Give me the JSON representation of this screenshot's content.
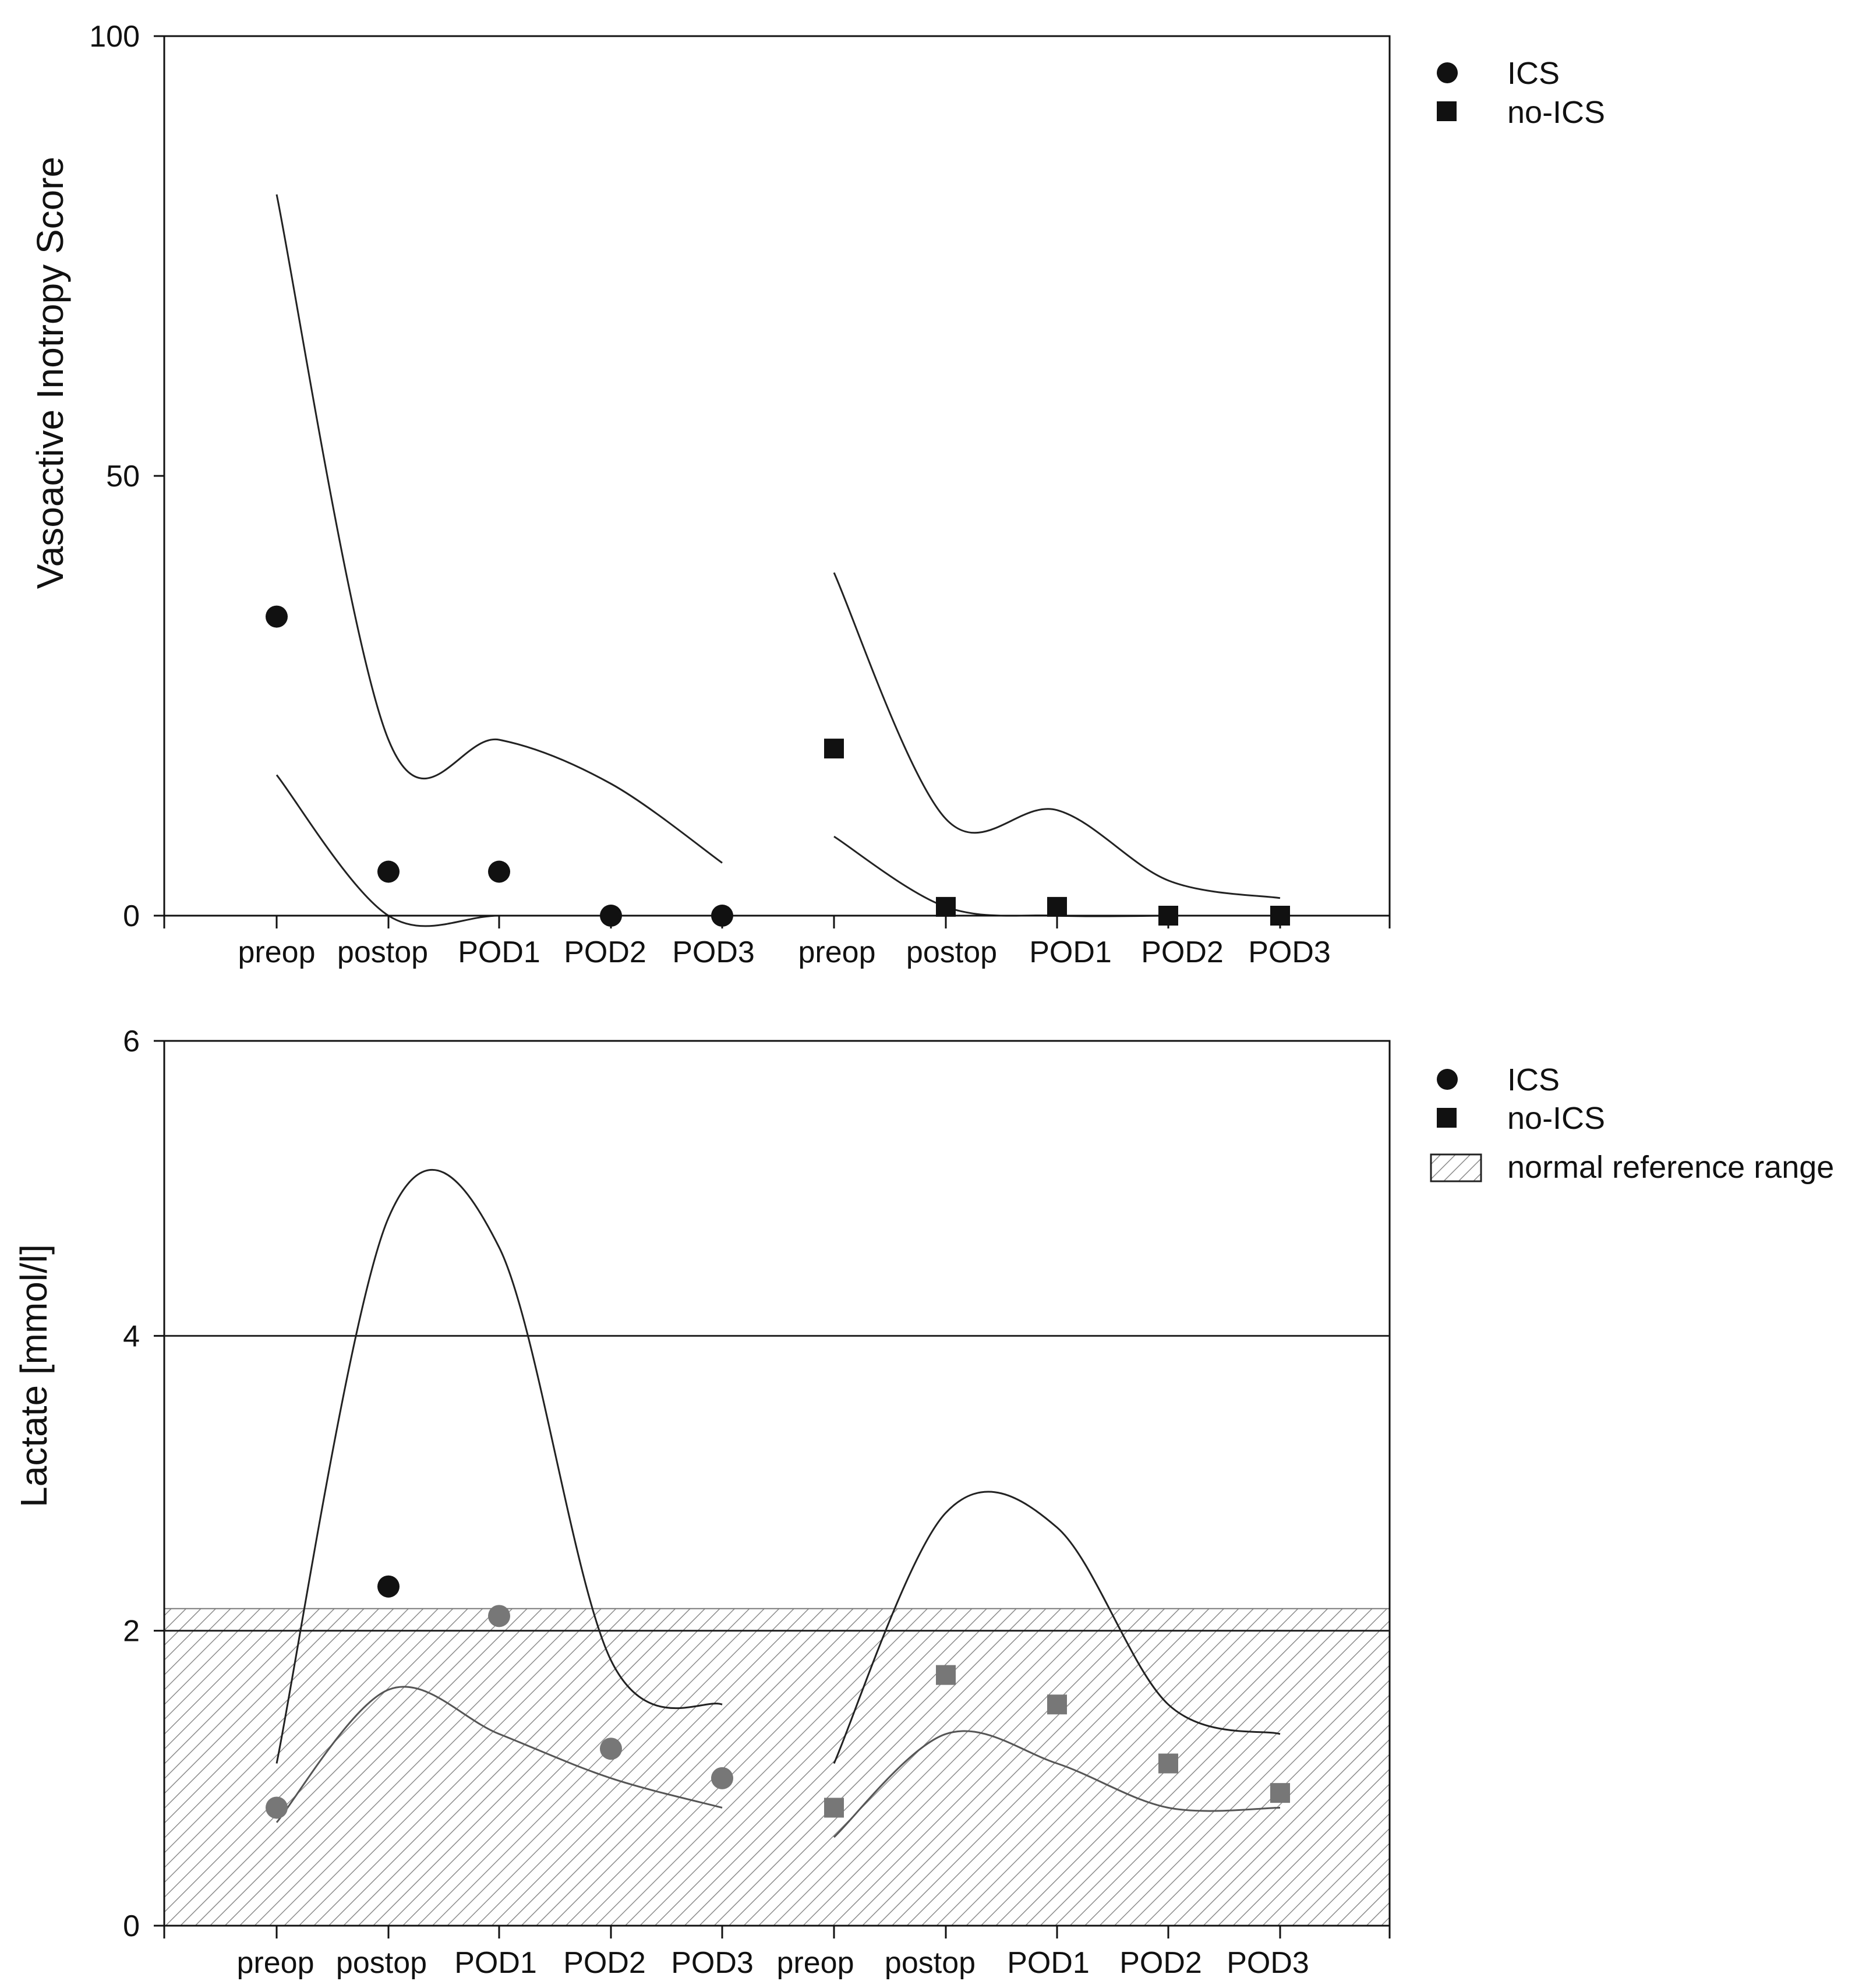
{
  "chart_data": [
    {
      "type": "scatter",
      "ylabel": "Vasoactive Inotropy Score",
      "ylim": [
        0,
        100
      ],
      "yticks": [
        0,
        50,
        100
      ],
      "categories": [
        "preop",
        "postop",
        "POD1",
        "POD2",
        "POD3",
        "preop",
        "postop",
        "POD1",
        "POD2",
        "POD3"
      ],
      "series": [
        {
          "name": "ICS",
          "marker": "circle",
          "values": [
            34,
            5,
            5,
            0,
            0
          ]
        },
        {
          "name": "no-ICS",
          "marker": "square",
          "values": [
            19,
            1,
            1,
            0,
            0
          ]
        }
      ],
      "bands": [
        {
          "series": "ICS",
          "upper": [
            82,
            20,
            20,
            15,
            6
          ],
          "lower": [
            16,
            0,
            0,
            0,
            null
          ]
        },
        {
          "series": "no-ICS",
          "upper": [
            39,
            11,
            12,
            4,
            2
          ],
          "lower": [
            9,
            1,
            0,
            0,
            null
          ]
        }
      ],
      "legend": [
        "ICS",
        "no-ICS"
      ],
      "legend_position": "top-right outside"
    },
    {
      "type": "scatter",
      "ylabel": "Lactate [mmol/l]",
      "ylim": [
        0,
        6
      ],
      "yticks": [
        0,
        2,
        4,
        6
      ],
      "reference_lines": [
        2,
        4
      ],
      "reference_range": [
        0,
        2.15
      ],
      "categories": [
        "preop",
        "postop",
        "POD1",
        "POD2",
        "POD3",
        "preop",
        "postop",
        "POD1",
        "POD2",
        "POD3"
      ],
      "series": [
        {
          "name": "ICS",
          "marker": "circle",
          "values": [
            0.8,
            2.3,
            2.1,
            1.2,
            1.0
          ]
        },
        {
          "name": "no-ICS",
          "marker": "square",
          "values": [
            0.8,
            1.7,
            1.5,
            1.1,
            0.9
          ]
        }
      ],
      "bands": [
        {
          "series": "ICS",
          "upper": [
            1.1,
            4.8,
            4.6,
            1.8,
            1.5
          ],
          "lower": [
            0.7,
            1.6,
            1.3,
            1.0,
            0.8
          ]
        },
        {
          "series": "no-ICS",
          "upper": [
            1.1,
            2.8,
            2.7,
            1.5,
            1.3
          ],
          "lower": [
            0.6,
            1.3,
            1.1,
            0.8,
            0.8
          ]
        }
      ],
      "legend": [
        "ICS",
        "no-ICS",
        "normal reference range"
      ],
      "legend_position": "top-right outside"
    }
  ]
}
